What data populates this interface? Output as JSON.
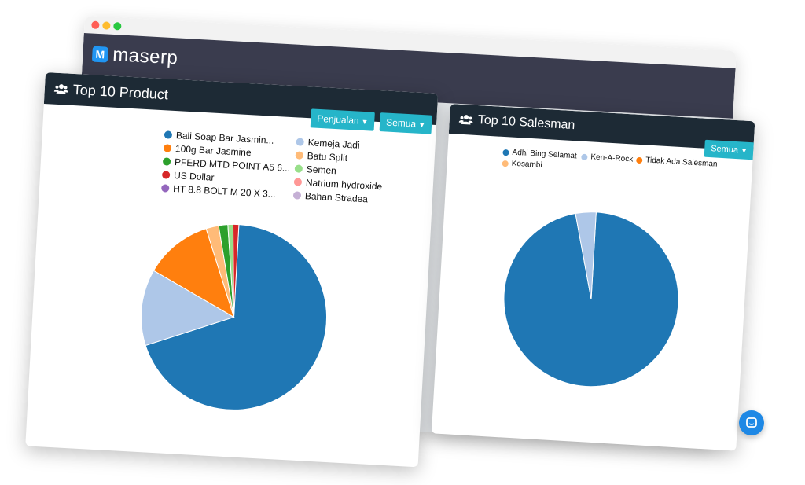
{
  "app": {
    "logo_letter": "M",
    "logo_name": "maserp"
  },
  "colors": {
    "header": "#1d2a35",
    "button": "#26b5c9",
    "app_bar": "#3a3c4e",
    "chat": "#1e88e5"
  },
  "product_panel": {
    "title": "Top 10 Product",
    "icon": "users-icon",
    "filter_type_label": "Penjualan",
    "filter_period_label": "Semua",
    "legend": [
      {
        "label": "Bali Soap Bar Jasmin...",
        "color": "#1f77b4"
      },
      {
        "label": "100g Bar Jasmine",
        "color": "#ff7f0e"
      },
      {
        "label": "PFERD MTD POINT A5 6...",
        "color": "#2ca02c"
      },
      {
        "label": "US Dollar",
        "color": "#d62728"
      },
      {
        "label": "HT 8.8 BOLT M 20 X 3...",
        "color": "#9467bd"
      },
      {
        "label": "Kemeja Jadi",
        "color": "#aec7e8"
      },
      {
        "label": "Batu Split",
        "color": "#ffbb78"
      },
      {
        "label": "Semen",
        "color": "#98df8a"
      },
      {
        "label": "Natrium hydroxide",
        "color": "#ff9896"
      },
      {
        "label": "Bahan Stradea",
        "color": "#c5b0d5"
      }
    ]
  },
  "salesman_panel": {
    "title": "Top 10 Salesman",
    "icon": "users-icon",
    "filter_period_label": "Semua",
    "legend": [
      {
        "label": "Adhi Bing Selamat",
        "color": "#1f77b4"
      },
      {
        "label": "Ken-A-Rock",
        "color": "#aec7e8"
      },
      {
        "label": "Tidak Ada Salesman",
        "color": "#ff7f0e"
      },
      {
        "label": "Kosambi",
        "color": "#ffbb78"
      }
    ]
  },
  "chart_data": [
    {
      "type": "pie",
      "slices": [
        {
          "label": "Bali Soap Bar Jasmin...",
          "value": 69.2,
          "color": "#1f77b4"
        },
        {
          "label": "Kemeja Jadi",
          "value": 13.3,
          "color": "#aec7e8"
        },
        {
          "label": "100g Bar Jasmine",
          "value": 11.8,
          "color": "#ff7f0e"
        },
        {
          "label": "Batu Split",
          "value": 2.2,
          "color": "#ffbb78"
        },
        {
          "label": "PFERD MTD POINT A5 6...",
          "value": 1.6,
          "color": "#2ca02c"
        },
        {
          "label": "Semen",
          "value": 0.9,
          "color": "#98df8a"
        },
        {
          "label": "US Dollar",
          "value": 1.0,
          "color": "#d62728"
        }
      ]
    },
    {
      "type": "pie",
      "slices": [
        {
          "label": "Adhi Bing Selamat",
          "value": 96.2,
          "color": "#1f77b4"
        },
        {
          "label": "Ken-A-Rock",
          "value": 3.8,
          "color": "#aec7e8"
        }
      ]
    }
  ]
}
